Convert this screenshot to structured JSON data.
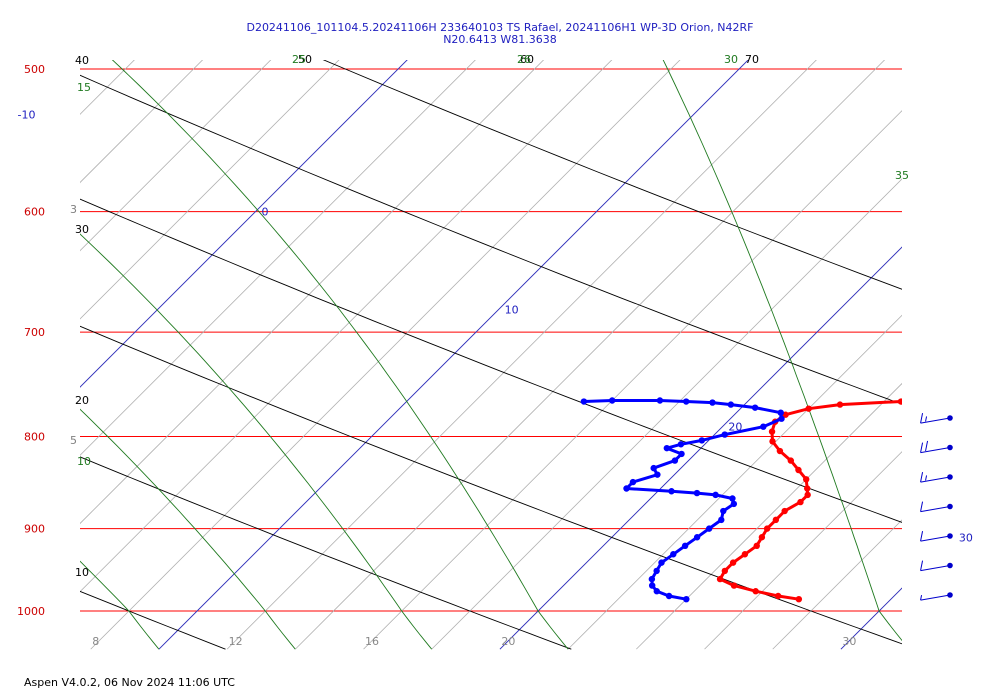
{
  "chart_data": {
    "type": "skew-t",
    "title_line1": "D20241106_101104.5.20241106H 233640103 TS Rafael, 20241106H1 WP-3D Orion, N42RF",
    "title_line2": "N20.6413 W81.3638",
    "footer": "Aspen V4.0.2, 06 Nov 2024  11:06 UTC",
    "pressure_axis": {
      "ticks": [
        500,
        600,
        700,
        800,
        900,
        1000
      ],
      "range": [
        500,
        1050
      ],
      "color": "#cc0000"
    },
    "temperature_axis": {
      "ticks": [
        8,
        12,
        16,
        20,
        30,
        40
      ],
      "color": "#888888"
    },
    "isotherm_labels": [
      {
        "text": "-10",
        "value": -10
      },
      {
        "text": "0",
        "value": 0
      },
      {
        "text": "10",
        "value": 10
      },
      {
        "text": "20",
        "value": 20
      },
      {
        "text": "30",
        "value": 30
      }
    ],
    "dry_adiabat_labels": [
      "40",
      "30",
      "20",
      "10",
      "50",
      "60",
      "70"
    ],
    "moist_adiabat_labels": [
      "15",
      "10",
      "25",
      "26",
      "30",
      "35"
    ],
    "mixing_ratio_labels": [
      "3",
      "5"
    ],
    "temperature_series": {
      "name": "Temperature",
      "color": "#ff0000",
      "pressure": [
        762,
        765,
        768,
        772,
        778,
        785,
        795,
        805,
        815,
        825,
        835,
        845,
        855,
        862,
        870,
        880,
        890,
        900,
        910,
        920,
        930,
        940,
        950,
        960,
        968,
        975,
        981,
        985
      ],
      "values": [
        26.0,
        24.5,
        22.8,
        22.0,
        21.5,
        21.4,
        21.6,
        21.9,
        22.4,
        23.0,
        23.5,
        24.0,
        24.3,
        24.5,
        24.5,
        24.3,
        24.3,
        24.3,
        24.4,
        24.5,
        24.4,
        24.3,
        24.3,
        24.4,
        25.0,
        25.8,
        26.6,
        27.3
      ]
    },
    "dewpoint_series": {
      "name": "Dewpoint",
      "color": "#0000ff",
      "pressure": [
        765,
        764,
        764,
        765,
        766,
        768,
        771,
        776,
        782,
        790,
        798,
        804,
        808,
        812,
        818,
        825,
        833,
        840,
        848,
        855,
        858,
        860,
        862,
        866,
        872,
        880,
        890,
        900,
        910,
        920,
        930,
        940,
        950,
        960,
        968,
        975,
        981,
        985
      ],
      "values": [
        15.2,
        16.0,
        17.4,
        18.2,
        19.0,
        19.6,
        20.4,
        21.3,
        21.5,
        21.2,
        20.3,
        19.8,
        19.3,
        19.0,
        19.6,
        19.6,
        19.2,
        19.5,
        19.0,
        19.0,
        20.4,
        21.2,
        21.8,
        22.4,
        22.6,
        22.5,
        22.7,
        22.6,
        22.5,
        22.4,
        22.3,
        22.2,
        22.3,
        22.4,
        22.6,
        22.9,
        23.4,
        24.0
      ]
    },
    "wind_barbs": {
      "pressure": [
        790,
        815,
        840,
        865,
        890,
        915,
        940
      ],
      "speed_kt": [
        15,
        20,
        15,
        10,
        10,
        10,
        5
      ],
      "color": "#0000cc"
    }
  }
}
